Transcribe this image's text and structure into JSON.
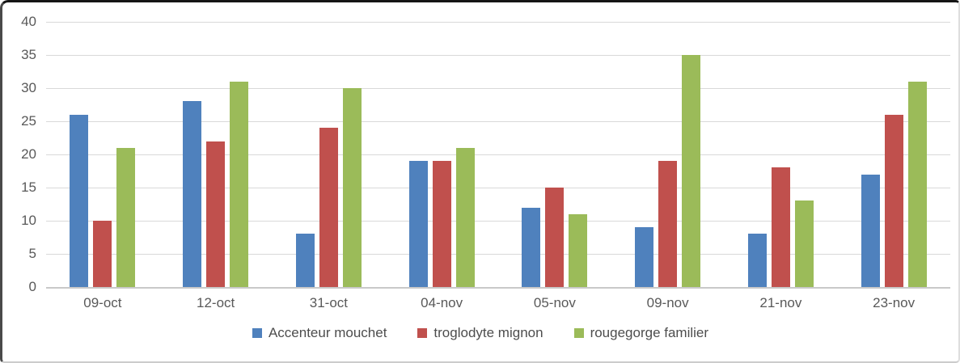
{
  "chart_data": {
    "type": "bar",
    "title": "",
    "xlabel": "",
    "ylabel": "",
    "categories": [
      "09-oct",
      "12-oct",
      "31-oct",
      "04-nov",
      "05-nov",
      "09-nov",
      "21-nov",
      "23-nov"
    ],
    "series": [
      {
        "name": "Accenteur mouchet",
        "color": "#4F81BD",
        "values": [
          26,
          28,
          8,
          19,
          12,
          9,
          8,
          17
        ]
      },
      {
        "name": "troglodyte mignon",
        "color": "#C0504D",
        "values": [
          10,
          22,
          24,
          19,
          15,
          19,
          18,
          26
        ]
      },
      {
        "name": "rougegorge familier",
        "color": "#9BBB59",
        "values": [
          21,
          31,
          30,
          21,
          11,
          35,
          13,
          31
        ]
      }
    ],
    "ylim": [
      0,
      40
    ],
    "yticks": [
      0,
      5,
      10,
      15,
      20,
      25,
      30,
      35,
      40
    ],
    "grid": true,
    "legend_position": "bottom",
    "axis_text_color": "#595959",
    "gridline_color": "#D9D9D9",
    "axis_line_color": "#C9C9C9"
  }
}
